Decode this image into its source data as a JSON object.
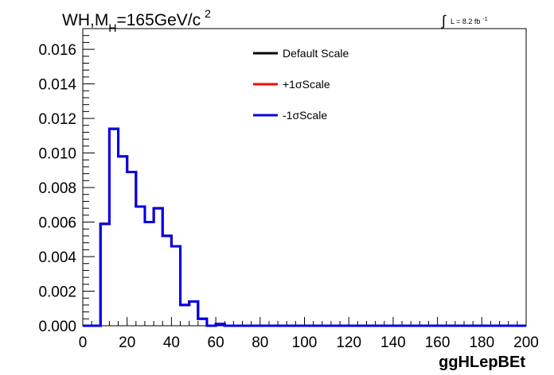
{
  "chart_data": {
    "type": "step",
    "title": {
      "main": "WH,M",
      "sub": "H",
      "rest": "=165GeV/c",
      "sup": "2"
    },
    "xlabel": "ggHLepBEt",
    "ylabel": "",
    "luminosity": {
      "symbol": "∫",
      "text": "L = 8.2 fb",
      "sup": "-1"
    },
    "xlim": [
      0,
      200
    ],
    "ylim": [
      0,
      0.0172
    ],
    "x_ticks": [
      0,
      20,
      40,
      60,
      80,
      100,
      120,
      140,
      160,
      180,
      200
    ],
    "x_tick_labels": [
      "0",
      "20",
      "40",
      "60",
      "80",
      "100",
      "120",
      "140",
      "160",
      "180",
      "200"
    ],
    "y_ticks": [
      0,
      0.002,
      0.004,
      0.006,
      0.008,
      0.01,
      0.012,
      0.014,
      0.016
    ],
    "y_tick_labels": [
      "0.000",
      "0.002",
      "0.004",
      "0.006",
      "0.008",
      "0.010",
      "0.012",
      "0.014",
      "0.016"
    ],
    "bin_edges": [
      0,
      4,
      8,
      12,
      16,
      20,
      24,
      28,
      32,
      36,
      40,
      44,
      48,
      52,
      56,
      60,
      64,
      68,
      72,
      76,
      80,
      84,
      88,
      92,
      96,
      100,
      104,
      108,
      112,
      116,
      120,
      124,
      128,
      132,
      136,
      140,
      144,
      148,
      152,
      156,
      160,
      164,
      168,
      172,
      176,
      180,
      184,
      188,
      192,
      196,
      200
    ],
    "series": [
      {
        "name": "Default Scale",
        "color": "#000000",
        "values": [
          0,
          0,
          0.0059,
          0.0114,
          0.0098,
          0.0089,
          0.0069,
          0.006,
          0.0068,
          0.0052,
          0.0046,
          0.0012,
          0.0014,
          0.0004,
          0,
          0.0001,
          0,
          0,
          0,
          0,
          0,
          0,
          0,
          0,
          0,
          0,
          0,
          0,
          0,
          0,
          0,
          0,
          0,
          0,
          0,
          0,
          0,
          0,
          0,
          0,
          0,
          0,
          0,
          0,
          0,
          0,
          0,
          0,
          0,
          0
        ]
      },
      {
        "name": "+1σScale",
        "color": "#ff0000",
        "values": [
          0,
          0,
          0.0059,
          0.0114,
          0.0098,
          0.0089,
          0.0069,
          0.006,
          0.0068,
          0.0052,
          0.0046,
          0.0012,
          0.0014,
          0.0004,
          0,
          0.0001,
          0,
          0,
          0,
          0,
          0,
          0,
          0,
          0,
          0,
          0,
          0,
          0,
          0,
          0,
          0,
          0,
          0,
          0,
          0,
          0,
          0,
          0,
          0,
          0,
          0,
          0,
          0,
          0,
          0,
          0,
          0,
          0,
          0,
          0
        ]
      },
      {
        "name": "-1σScale",
        "color": "#0000ee",
        "values": [
          0,
          0,
          0.0059,
          0.0114,
          0.0098,
          0.0089,
          0.0069,
          0.006,
          0.0068,
          0.0052,
          0.0046,
          0.0012,
          0.0014,
          0.0004,
          0,
          0.0001,
          0,
          0,
          0,
          0,
          0,
          0,
          0,
          0,
          0,
          0,
          0,
          0,
          0,
          0,
          0,
          0,
          0,
          0,
          0,
          0,
          0,
          0,
          0,
          0,
          0,
          0,
          0,
          0,
          0,
          0,
          0,
          0,
          0,
          0
        ]
      }
    ],
    "legend_placement": "top-right",
    "grid": false
  }
}
